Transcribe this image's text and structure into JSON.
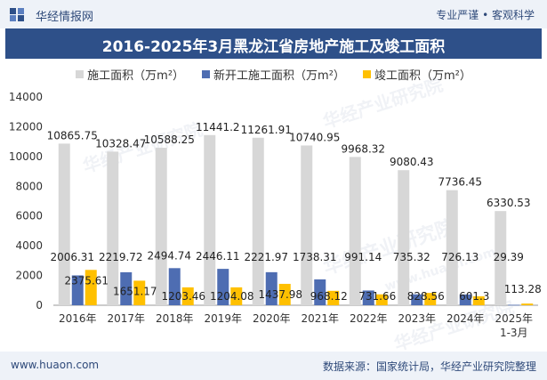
{
  "header": {
    "brand": "华经情报网",
    "slogan": "专业严谨 • 客观科学"
  },
  "footer": {
    "site": "www.huaon.com",
    "source": "数据来源：国家统计局，华经产业研究院整理"
  },
  "watermarks": [
    "华经产业研究院",
    "www.huaon.com"
  ],
  "colors": {
    "series": [
      "#d7d7d7",
      "#4e6db2",
      "#ffc000"
    ],
    "title_bg": "#2e5089",
    "band_bg": "#eef2f8"
  },
  "chart_data": {
    "type": "bar",
    "title": "2016-2025年3月黑龙江省房地产施工及竣工面积",
    "categories": [
      "2016年",
      "2017年",
      "2018年",
      "2019年",
      "2020年",
      "2021年",
      "2022年",
      "2023年",
      "2024年",
      "2025年\n1-3月"
    ],
    "series": [
      {
        "name": "施工面积（万m²）",
        "values": [
          10865.75,
          10328.47,
          10588.25,
          11441.2,
          11261.91,
          10740.95,
          9968.32,
          9080.43,
          7736.45,
          6330.53
        ],
        "labels": [
          "10865.75",
          "10328.47",
          "10588.25",
          "11441.2",
          "11261.91",
          "10740.95",
          "9968.32",
          "9080.43",
          "7736.45",
          "6330.53"
        ]
      },
      {
        "name": "新开工施工面积（万m²）",
        "values": [
          2006.31,
          2219.72,
          2494.74,
          2446.11,
          2221.97,
          1738.31,
          991.14,
          735.32,
          726.13,
          29.39
        ],
        "labels": [
          "2006.31",
          "2219.72",
          "2494.74",
          "2446.11",
          "2221.97",
          "1738.31",
          "991.14",
          "735.32",
          "726.13",
          "29.39"
        ]
      },
      {
        "name": "竣工面积（万m²）",
        "values": [
          2375.61,
          1651.17,
          1203.46,
          1204.08,
          1437.98,
          968.12,
          731.66,
          828.56,
          601.3,
          113.28
        ],
        "labels": [
          "2375.61",
          "1651.17",
          "1203.46",
          "1204.08",
          "1437.98",
          "968.12",
          "731.66",
          "828.56",
          "601.3",
          "113.28"
        ]
      }
    ],
    "ylim": [
      0,
      14000
    ],
    "yticks": [
      0,
      2000,
      4000,
      6000,
      8000,
      10000,
      12000,
      14000
    ],
    "ytick_labels": [
      "0",
      "2000",
      "4000",
      "6000",
      "8000",
      "10000",
      "12000",
      "14000"
    ],
    "legend_position": "top-center",
    "grid": false
  }
}
